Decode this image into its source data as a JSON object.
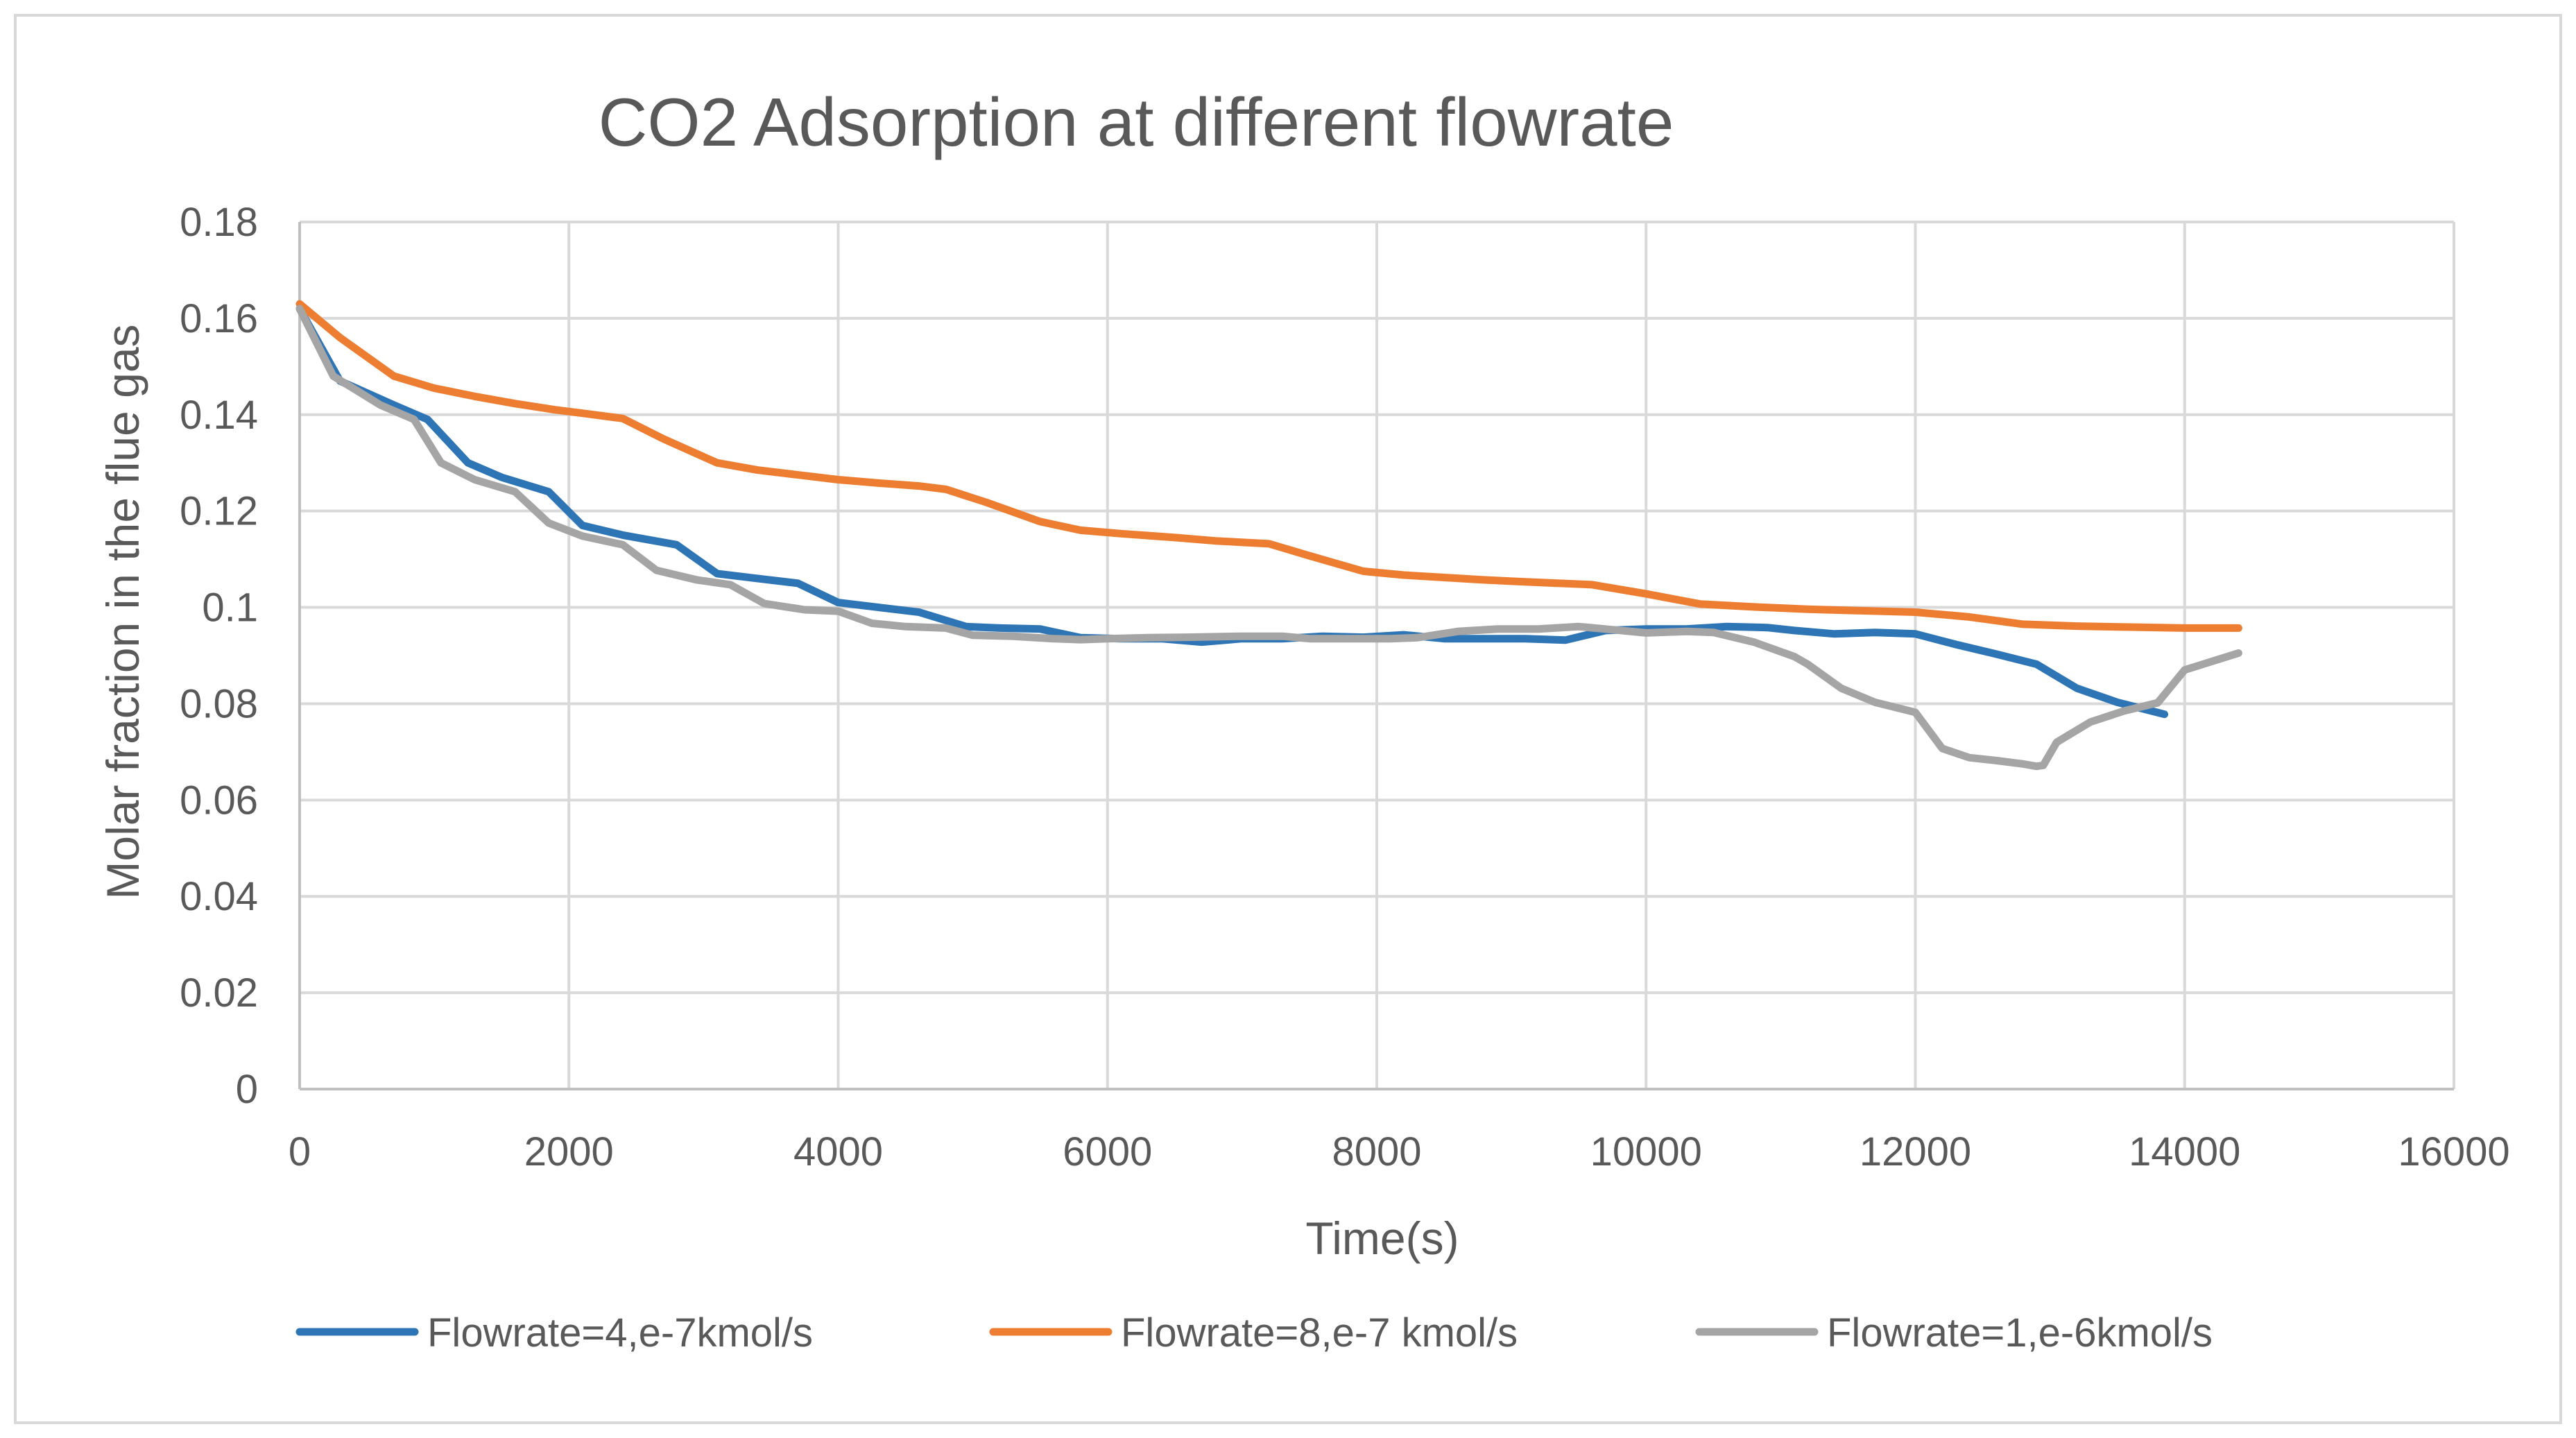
{
  "chart_data": {
    "type": "line",
    "title": "CO2 Adsorption at different flowrate",
    "xlabel": "Time(s)",
    "ylabel": "Molar fraction in the flue gas",
    "xlim": [
      0,
      16000
    ],
    "ylim": [
      0,
      0.18
    ],
    "x_ticks": [
      0,
      2000,
      4000,
      6000,
      8000,
      10000,
      12000,
      14000,
      16000
    ],
    "x_tick_labels": [
      "0",
      "2000",
      "4000",
      "6000",
      "8000",
      "10000",
      "12000",
      "14000",
      "16000"
    ],
    "y_ticks": [
      0,
      0.02,
      0.04,
      0.06,
      0.08,
      0.1,
      0.12,
      0.14,
      0.16,
      0.18
    ],
    "y_tick_labels": [
      "0",
      "0.02",
      "0.04",
      "0.06",
      "0.08",
      "0.1",
      "0.12",
      "0.14",
      "0.16",
      "0.18"
    ],
    "grid": true,
    "legend_position": "bottom",
    "series": [
      {
        "name": "Flowrate=4,e-7kmol/s",
        "color": "#2e75b6",
        "x": [
          0,
          300,
          700,
          950,
          1250,
          1500,
          1850,
          2100,
          2400,
          2800,
          3100,
          3400,
          3700,
          4000,
          4300,
          4600,
          4950,
          5200,
          5500,
          5800,
          6100,
          6400,
          6700,
          7000,
          7300,
          7600,
          7900,
          8200,
          8500,
          8800,
          9100,
          9400,
          9700,
          10000,
          10300,
          10600,
          10900,
          11100,
          11400,
          11700,
          12000,
          12300,
          12600,
          12900,
          13200,
          13500,
          13850
        ],
        "y": [
          0.162,
          0.147,
          0.142,
          0.139,
          0.13,
          0.127,
          0.124,
          0.117,
          0.115,
          0.113,
          0.107,
          0.106,
          0.105,
          0.101,
          0.1,
          0.099,
          0.096,
          0.0957,
          0.0955,
          0.0937,
          0.0935,
          0.0935,
          0.0928,
          0.0935,
          0.0935,
          0.094,
          0.0938,
          0.0943,
          0.0935,
          0.0935,
          0.0935,
          0.0932,
          0.0952,
          0.0955,
          0.0955,
          0.096,
          0.0958,
          0.0952,
          0.0945,
          0.0948,
          0.0945,
          0.0923,
          0.0903,
          0.0882,
          0.0832,
          0.0803,
          0.0778
        ]
      },
      {
        "name": "Flowrate=8,e-7 kmol/s",
        "color": "#ed7d31",
        "x": [
          0,
          300,
          700,
          1000,
          1300,
          1600,
          1900,
          2100,
          2400,
          2700,
          3100,
          3400,
          3700,
          4000,
          4300,
          4600,
          4800,
          5100,
          5500,
          5800,
          6100,
          6500,
          6800,
          7200,
          7500,
          7900,
          8200,
          8500,
          8800,
          9100,
          9600,
          10000,
          10400,
          10800,
          11200,
          11600,
          12000,
          12400,
          12800,
          13200,
          13600,
          14000,
          14400
        ],
        "y": [
          0.163,
          0.156,
          0.148,
          0.1455,
          0.1438,
          0.1423,
          0.141,
          0.1403,
          0.1392,
          0.135,
          0.13,
          0.1285,
          0.1275,
          0.1265,
          0.1258,
          0.1252,
          0.1245,
          0.1218,
          0.1178,
          0.116,
          0.1153,
          0.1145,
          0.1138,
          0.1132,
          0.1107,
          0.1075,
          0.1067,
          0.1062,
          0.1057,
          0.1053,
          0.1047,
          0.1028,
          0.1007,
          0.1001,
          0.0996,
          0.0993,
          0.099,
          0.098,
          0.0965,
          0.0961,
          0.0959,
          0.0957,
          0.0957
        ]
      },
      {
        "name": "Flowrate=1,e-6kmol/s",
        "color": "#a5a5a5",
        "x": [
          0,
          250,
          600,
          850,
          1050,
          1300,
          1600,
          1850,
          2100,
          2400,
          2650,
          2950,
          3200,
          3450,
          3750,
          4000,
          4250,
          4500,
          4800,
          5000,
          5300,
          5600,
          5800,
          6000,
          6300,
          6600,
          7000,
          7300,
          7500,
          7800,
          8100,
          8300,
          8600,
          8900,
          9200,
          9500,
          9700,
          10000,
          10300,
          10500,
          10800,
          11100,
          11200,
          11450,
          11700,
          12000,
          12200,
          12400,
          12600,
          12800,
          12900,
          12950,
          13050,
          13300,
          13550,
          13800,
          14000,
          14400
        ],
        "y": [
          0.162,
          0.148,
          0.142,
          0.139,
          0.13,
          0.1265,
          0.124,
          0.1175,
          0.1148,
          0.113,
          0.1077,
          0.1057,
          0.1047,
          0.1008,
          0.0995,
          0.0992,
          0.0967,
          0.096,
          0.0957,
          0.0942,
          0.094,
          0.0935,
          0.0933,
          0.0935,
          0.0937,
          0.0938,
          0.094,
          0.094,
          0.0935,
          0.0935,
          0.0935,
          0.0937,
          0.095,
          0.0955,
          0.0955,
          0.096,
          0.0955,
          0.0947,
          0.095,
          0.0948,
          0.0928,
          0.0898,
          0.0882,
          0.0832,
          0.0803,
          0.0782,
          0.0707,
          0.0688,
          0.0682,
          0.0675,
          0.067,
          0.0672,
          0.072,
          0.0762,
          0.0785,
          0.0802,
          0.087,
          0.0905
        ]
      }
    ]
  }
}
